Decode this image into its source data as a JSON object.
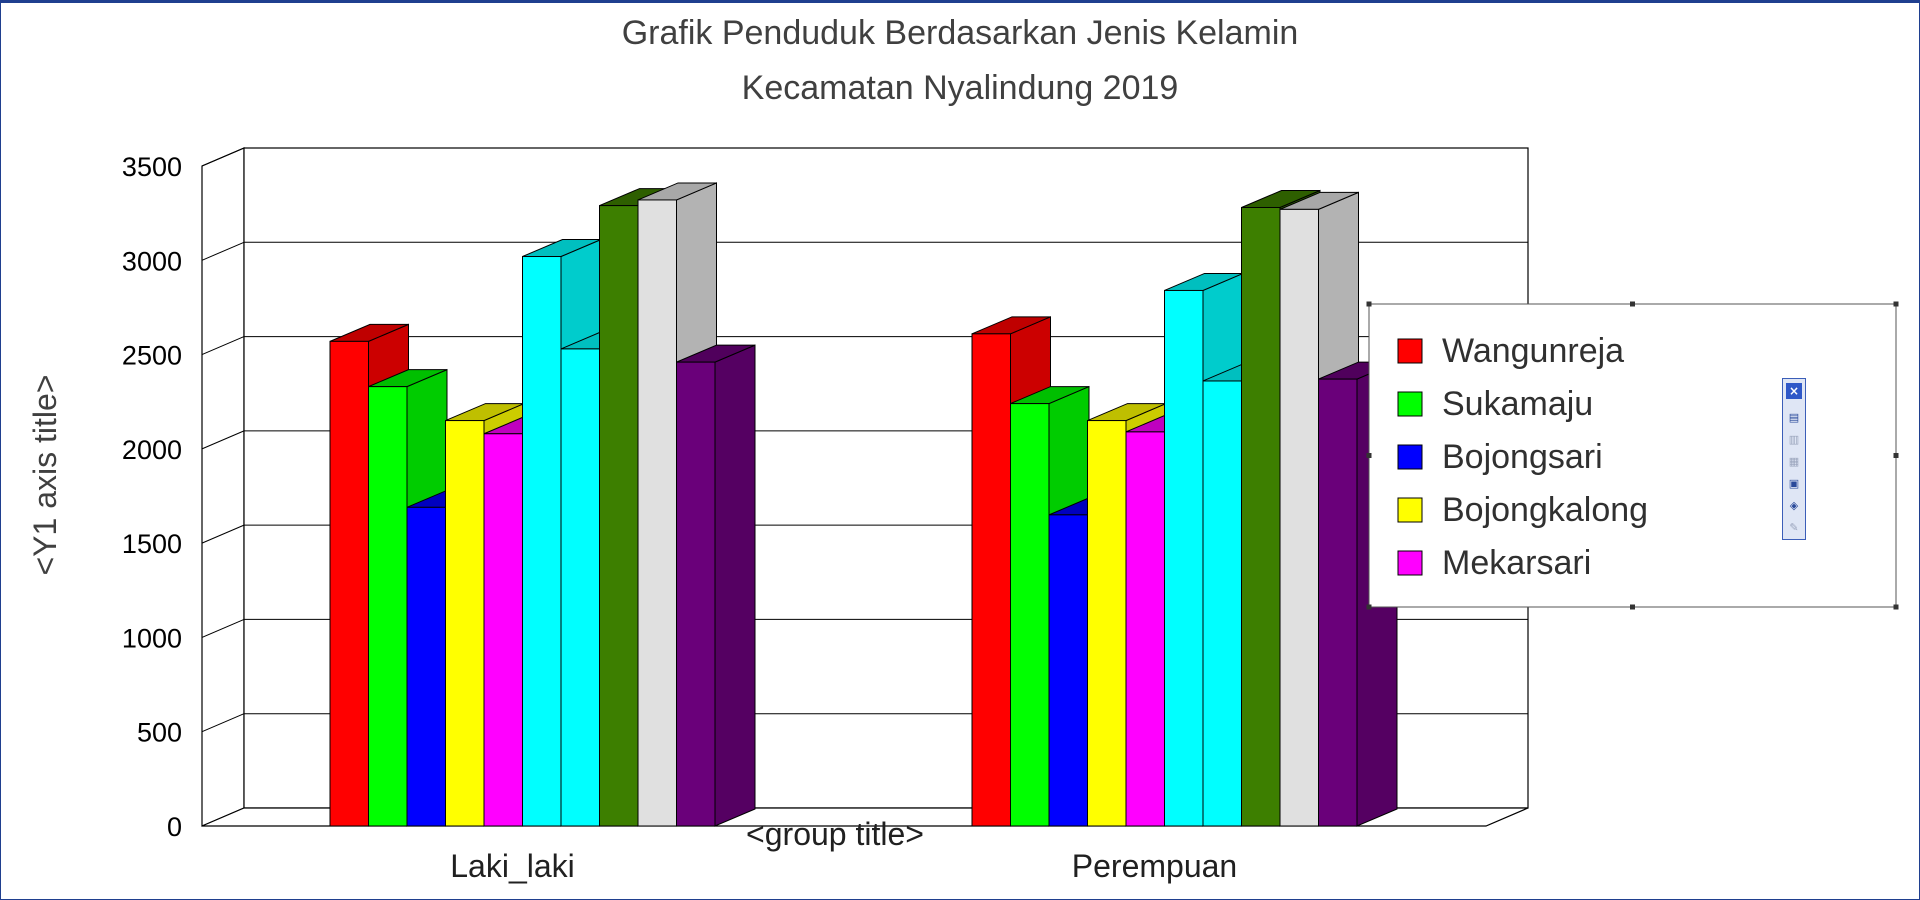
{
  "chart_data": {
    "type": "bar",
    "title": "Grafik Penduduk Berdasarkan Jenis Kelamin",
    "subtitle": "Kecamatan Nyalindung 2019",
    "ylabel": "<Y1 axis title>",
    "xlabel": "<group title>",
    "ylim": [
      0,
      3500
    ],
    "yticks": [
      0,
      500,
      1000,
      1500,
      2000,
      2500,
      3000,
      3500
    ],
    "categories": [
      "Laki_laki",
      "Perempuan"
    ],
    "legend_position": "right",
    "series": [
      {
        "name": "Wangunreja",
        "color": "#ff0000",
        "values": [
          2570,
          2610
        ]
      },
      {
        "name": "Sukamaju",
        "color": "#00ff00",
        "values": [
          2330,
          2240
        ]
      },
      {
        "name": "Bojongsari",
        "color": "#0000ff",
        "values": [
          1690,
          1650
        ]
      },
      {
        "name": "Bojongkalong",
        "color": "#ffff00",
        "values": [
          2150,
          2150
        ]
      },
      {
        "name": "Mekarsari",
        "color": "#ff00ff",
        "values": [
          2080,
          2090
        ]
      },
      {
        "name": "",
        "color": "#00ffff",
        "values": [
          3020,
          2840
        ]
      },
      {
        "name": "",
        "color": "#00ffff",
        "values": [
          2530,
          2360
        ]
      },
      {
        "name": "",
        "color": "#3d7f00",
        "values": [
          3290,
          3280
        ]
      },
      {
        "name": "",
        "color": "#e0e0e0",
        "values": [
          3320,
          3270
        ]
      },
      {
        "name": "",
        "color": "#6a007a",
        "values": [
          2460,
          2370
        ]
      }
    ]
  },
  "legend_toolbar": {
    "icons": [
      "close-icon",
      "legend-properties-icon",
      "legend-font-icon",
      "legend-color-icon",
      "legend-layout-icon",
      "legend-move-icon",
      "legend-edit-icon"
    ]
  }
}
